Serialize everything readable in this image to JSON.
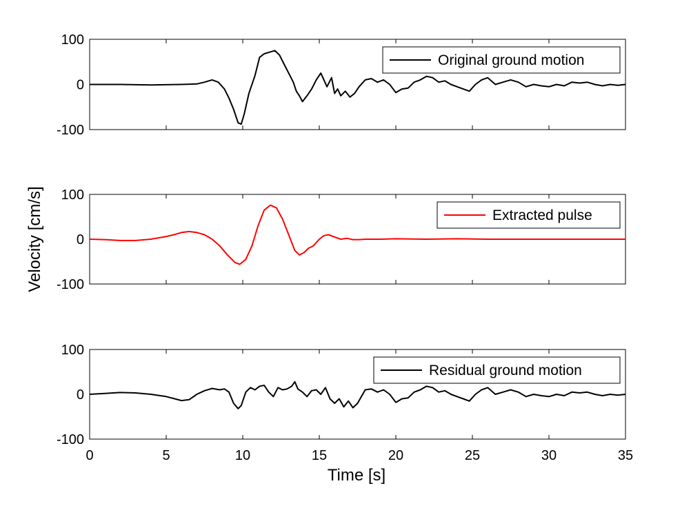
{
  "figure": {
    "ylabel": "Velocity [cm/s]",
    "xlabel": "Time [s]"
  },
  "chart_data": [
    {
      "type": "line",
      "legend": "Original ground motion",
      "legend_position": "top-right",
      "color": "#000000",
      "xlim": [
        0,
        35
      ],
      "ylim": [
        -100,
        100
      ],
      "yticks": [
        100,
        0,
        -100
      ],
      "xticks": [],
      "grid": false,
      "series": [
        {
          "name": "Original ground motion",
          "x": [
            0,
            2,
            4,
            6,
            7,
            7.5,
            8,
            8.4,
            8.8,
            9.1,
            9.4,
            9.7,
            9.9,
            10.1,
            10.4,
            10.8,
            11.1,
            11.4,
            11.8,
            12.1,
            12.4,
            12.7,
            13.0,
            13.3,
            13.5,
            13.7,
            13.9,
            14.2,
            14.5,
            14.8,
            15.1,
            15.3,
            15.5,
            15.8,
            16.0,
            16.2,
            16.4,
            16.7,
            17.0,
            17.3,
            17.6,
            18.0,
            18.4,
            18.8,
            19.2,
            19.6,
            20.0,
            20.4,
            20.8,
            21.2,
            21.6,
            22.0,
            22.4,
            22.8,
            23.2,
            23.6,
            24.0,
            24.4,
            24.8,
            25.2,
            25.6,
            26.0,
            26.5,
            27.0,
            27.5,
            28.0,
            28.5,
            29.0,
            29.5,
            30.0,
            30.5,
            31.0,
            31.5,
            32.0,
            32.5,
            33.0,
            33.5,
            34.0,
            34.5,
            35.0
          ],
          "y": [
            0,
            0,
            -1,
            0,
            1,
            5,
            10,
            5,
            -10,
            -30,
            -55,
            -85,
            -88,
            -65,
            -20,
            20,
            60,
            68,
            72,
            75,
            65,
            45,
            25,
            5,
            -15,
            -25,
            -38,
            -25,
            -10,
            10,
            25,
            10,
            -5,
            15,
            -20,
            -10,
            -25,
            -15,
            -28,
            -20,
            -5,
            10,
            13,
            5,
            10,
            0,
            -18,
            -10,
            -8,
            5,
            10,
            18,
            15,
            5,
            8,
            0,
            -5,
            -10,
            -15,
            0,
            10,
            15,
            0,
            5,
            10,
            5,
            -5,
            0,
            -3,
            -5,
            0,
            -3,
            5,
            3,
            5,
            0,
            -3,
            0,
            -2,
            0
          ]
        }
      ]
    },
    {
      "type": "line",
      "legend": "Extracted pulse",
      "legend_position": "top-right",
      "color": "#ff0000",
      "xlim": [
        0,
        35
      ],
      "ylim": [
        -100,
        100
      ],
      "yticks": [
        100,
        0,
        -100
      ],
      "xticks": [],
      "grid": false,
      "series": [
        {
          "name": "Extracted pulse",
          "x": [
            0,
            1,
            2,
            3,
            4,
            5,
            5.5,
            6,
            6.5,
            7,
            7.5,
            8,
            8.5,
            9,
            9.5,
            9.8,
            10.2,
            10.6,
            11.0,
            11.4,
            11.8,
            12.2,
            12.6,
            13.0,
            13.4,
            13.7,
            14.0,
            14.3,
            14.6,
            15.0,
            15.3,
            15.6,
            16.0,
            16.4,
            16.8,
            17.2,
            17.6,
            18,
            19,
            20,
            22,
            24,
            26,
            28,
            30,
            32,
            35
          ],
          "y": [
            0,
            -1,
            -3,
            -3,
            0,
            6,
            10,
            15,
            17,
            15,
            10,
            0,
            -15,
            -35,
            -52,
            -56,
            -45,
            -15,
            30,
            65,
            76,
            70,
            45,
            10,
            -25,
            -35,
            -30,
            -20,
            -15,
            0,
            8,
            10,
            5,
            0,
            2,
            -1,
            -1,
            0,
            0,
            1,
            0,
            1,
            0,
            0,
            0,
            0,
            0
          ]
        }
      ]
    },
    {
      "type": "line",
      "legend": "Residual ground motion",
      "legend_position": "top-right",
      "color": "#000000",
      "xlim": [
        0,
        35
      ],
      "ylim": [
        -100,
        100
      ],
      "yticks": [
        100,
        0,
        -100
      ],
      "xticks": [
        0,
        5,
        10,
        15,
        20,
        25,
        30,
        35
      ],
      "grid": false,
      "series": [
        {
          "name": "Residual ground motion",
          "x": [
            0,
            1,
            2,
            3,
            4,
            5,
            6,
            6.5,
            7,
            7.5,
            8,
            8.5,
            8.8,
            9.1,
            9.4,
            9.7,
            9.9,
            10.2,
            10.5,
            10.8,
            11.1,
            11.4,
            11.7,
            12.0,
            12.3,
            12.6,
            12.9,
            13.2,
            13.4,
            13.6,
            13.9,
            14.2,
            14.5,
            14.8,
            15.1,
            15.4,
            15.7,
            16.0,
            16.3,
            16.6,
            16.9,
            17.2,
            17.5,
            18.0,
            18.4,
            18.8,
            19.2,
            19.6,
            20.0,
            20.4,
            20.8,
            21.2,
            21.6,
            22.0,
            22.4,
            22.8,
            23.2,
            23.6,
            24.0,
            24.4,
            24.8,
            25.2,
            25.6,
            26.0,
            26.5,
            27.0,
            27.5,
            28.0,
            28.5,
            29.0,
            29.5,
            30.0,
            30.5,
            31.0,
            31.5,
            32.0,
            32.5,
            33.0,
            33.5,
            34.0,
            34.5,
            35.0
          ],
          "y": [
            0,
            2,
            4,
            3,
            0,
            -5,
            -14,
            -12,
            0,
            8,
            13,
            10,
            12,
            5,
            -20,
            -32,
            -25,
            5,
            15,
            10,
            18,
            20,
            5,
            -5,
            15,
            10,
            12,
            18,
            28,
            12,
            5,
            -5,
            8,
            10,
            0,
            15,
            -10,
            -20,
            -10,
            -28,
            -15,
            -30,
            -20,
            10,
            12,
            5,
            10,
            0,
            -18,
            -10,
            -8,
            5,
            10,
            18,
            15,
            5,
            8,
            0,
            -5,
            -10,
            -15,
            0,
            10,
            15,
            0,
            5,
            10,
            5,
            -5,
            0,
            -3,
            -5,
            0,
            -3,
            5,
            3,
            5,
            0,
            -3,
            0,
            -2,
            0
          ]
        }
      ]
    }
  ]
}
